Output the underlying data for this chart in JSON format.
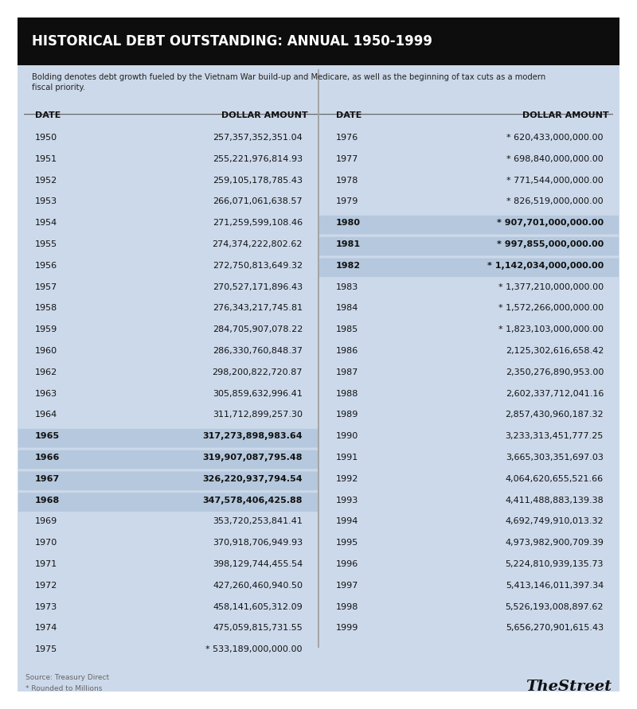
{
  "title": "HISTORICAL DEBT OUTSTANDING: ANNUAL 1950-1999",
  "subtitle": "Bolding denotes debt growth fueled by the Vietnam War build-up and Medicare, as well as the beginning of tax cuts as a modern\nfiscal priority.",
  "source": "Source: Treasury Direct\n* Rounded to Millions",
  "brand": "TheStreet",
  "bg_outer": "#ffffff",
  "bg_inner": "#ccd9ea",
  "header_bg": "#0d0d0d",
  "header_text_color": "#ffffff",
  "bold_bg": "#b5c8dd",
  "left_data": [
    [
      "1950",
      "257,357,352,351.04",
      false
    ],
    [
      "1951",
      "255,221,976,814.93",
      false
    ],
    [
      "1952",
      "259,105,178,785.43",
      false
    ],
    [
      "1953",
      "266,071,061,638.57",
      false
    ],
    [
      "1954",
      "271,259,599,108.46",
      false
    ],
    [
      "1955",
      "274,374,222,802.62",
      false
    ],
    [
      "1956",
      "272,750,813,649.32",
      false
    ],
    [
      "1957",
      "270,527,171,896.43",
      false
    ],
    [
      "1958",
      "276,343,217,745.81",
      false
    ],
    [
      "1959",
      "284,705,907,078.22",
      false
    ],
    [
      "1960",
      "286,330,760,848.37",
      false
    ],
    [
      "1962",
      "298,200,822,720.87",
      false
    ],
    [
      "1963",
      "305,859,632,996.41",
      false
    ],
    [
      "1964",
      "311,712,899,257.30",
      false
    ],
    [
      "1965",
      "317,273,898,983.64",
      true
    ],
    [
      "1966",
      "319,907,087,795.48",
      true
    ],
    [
      "1967",
      "326,220,937,794.54",
      true
    ],
    [
      "1968",
      "347,578,406,425.88",
      true
    ],
    [
      "1969",
      "353,720,253,841.41",
      false
    ],
    [
      "1970",
      "370,918,706,949.93",
      false
    ],
    [
      "1971",
      "398,129,744,455.54",
      false
    ],
    [
      "1972",
      "427,260,460,940.50",
      false
    ],
    [
      "1973",
      "458,141,605,312.09",
      false
    ],
    [
      "1974",
      "475,059,815,731.55",
      false
    ],
    [
      "1975",
      "* 533,189,000,000.00",
      false
    ]
  ],
  "right_data": [
    [
      "1976",
      "* 620,433,000,000.00",
      false
    ],
    [
      "1977",
      "* 698,840,000,000.00",
      false
    ],
    [
      "1978",
      "* 771,544,000,000.00",
      false
    ],
    [
      "1979",
      "* 826,519,000,000.00",
      false
    ],
    [
      "1980",
      "* 907,701,000,000.00",
      true
    ],
    [
      "1981",
      "* 997,855,000,000.00",
      true
    ],
    [
      "1982",
      "* 1,142,034,000,000.00",
      true
    ],
    [
      "1983",
      "* 1,377,210,000,000.00",
      false
    ],
    [
      "1984",
      "* 1,572,266,000,000.00",
      false
    ],
    [
      "1985",
      "* 1,823,103,000,000.00",
      false
    ],
    [
      "1986",
      "2,125,302,616,658.42",
      false
    ],
    [
      "1987",
      "2,350,276,890,953.00",
      false
    ],
    [
      "1988",
      "2,602,337,712,041.16",
      false
    ],
    [
      "1989",
      "2,857,430,960,187.32",
      false
    ],
    [
      "1990",
      "3,233,313,451,777.25",
      false
    ],
    [
      "1991",
      "3,665,303,351,697.03",
      false
    ],
    [
      "1992",
      "4,064,620,655,521.66",
      false
    ],
    [
      "1993",
      "4,411,488,883,139.38",
      false
    ],
    [
      "1994",
      "4,692,749,910,013.32",
      false
    ],
    [
      "1995",
      "4,973,982,900,709.39",
      false
    ],
    [
      "1996",
      "5,224,810,939,135.73",
      false
    ],
    [
      "1997",
      "5,413,146,011,397.34",
      false
    ],
    [
      "1998",
      "5,526,193,008,897.62",
      false
    ],
    [
      "1999",
      "5,656,270,901,615.43",
      false
    ]
  ]
}
